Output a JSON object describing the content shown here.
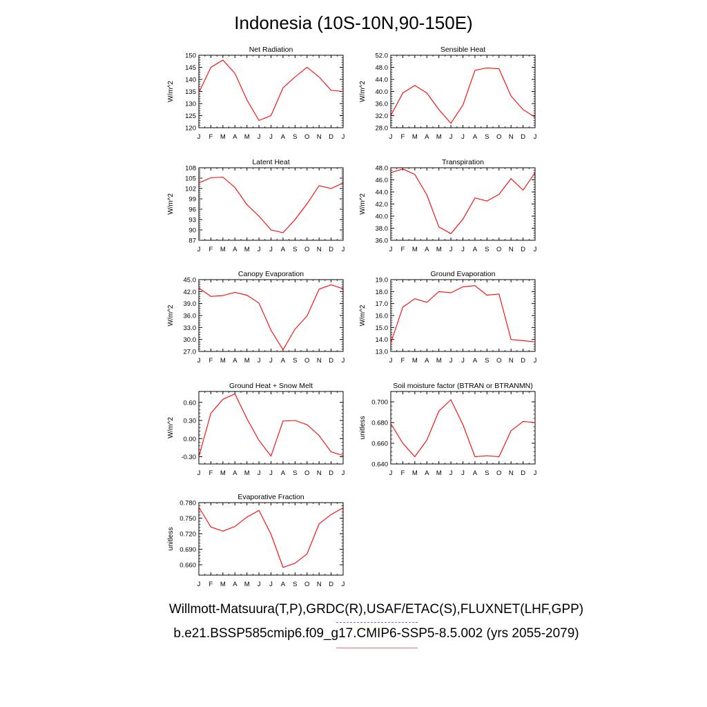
{
  "title": "Indonesia (10S-10N,90-150E)",
  "legend": {
    "obs_label": "Willmott-Matsuura(T,P),GRDC(R),USAF/ETAC(S),FLUXNET(LHF,GPP)",
    "model_label": "b.e21.BSSP585cmip6.f09_g17.CMIP6-SSP5-8.5.002 (yrs 2055-2079)",
    "obs_color": "#6b6bf0",
    "model_color": "#ff0000"
  },
  "chart_data": [
    {
      "type": "line",
      "title": "Net Radiation",
      "ylabel": "W/m^2",
      "x": [
        "J",
        "F",
        "M",
        "A",
        "M",
        "J",
        "J",
        "A",
        "S",
        "O",
        "N",
        "D",
        "J"
      ],
      "ylim": [
        120,
        150
      ],
      "yticks": [
        120,
        125,
        130,
        135,
        140,
        145,
        150
      ],
      "ytick_labels": [
        "120",
        "125",
        "130",
        "135",
        "140",
        "145",
        "150"
      ],
      "series": [
        {
          "values": [
            134.5,
            145.0,
            148.0,
            142.5,
            131.5,
            123.0,
            125.0,
            136.5,
            141.0,
            145.0,
            141.0,
            135.5,
            135.0
          ],
          "color": "#ff0000"
        }
      ]
    },
    {
      "type": "line",
      "title": "Sensible Heat",
      "ylabel": "W/m^2",
      "x": [
        "J",
        "F",
        "M",
        "A",
        "M",
        "J",
        "J",
        "A",
        "S",
        "O",
        "N",
        "D",
        "J"
      ],
      "ylim": [
        28,
        52
      ],
      "yticks": [
        28,
        32,
        36,
        40,
        44,
        48,
        52
      ],
      "ytick_labels": [
        "28.0",
        "32.0",
        "36.0",
        "40.0",
        "44.0",
        "48.0",
        "52.0"
      ],
      "series": [
        {
          "values": [
            32.0,
            39.5,
            42.0,
            39.5,
            34.0,
            29.5,
            35.5,
            47.0,
            47.8,
            47.5,
            38.5,
            34.0,
            31.5
          ],
          "color": "#ff0000"
        }
      ]
    },
    {
      "type": "line",
      "title": "Latent Heat",
      "ylabel": "W/m^2",
      "x": [
        "J",
        "F",
        "M",
        "A",
        "M",
        "J",
        "J",
        "A",
        "S",
        "O",
        "N",
        "D",
        "J"
      ],
      "ylim": [
        87,
        108
      ],
      "yticks": [
        87,
        90,
        93,
        96,
        99,
        102,
        105,
        108
      ],
      "ytick_labels": [
        "87",
        "90",
        "93",
        "96",
        "99",
        "102",
        "105",
        "108"
      ],
      "series": [
        {
          "values": [
            103.6,
            105.1,
            105.3,
            102.3,
            97.3,
            94.0,
            90.0,
            89.2,
            93.0,
            97.6,
            102.8,
            102.0,
            103.6
          ],
          "color": "#ff0000"
        }
      ]
    },
    {
      "type": "line",
      "title": "Transpiration",
      "ylabel": "W/m^2",
      "x": [
        "J",
        "F",
        "M",
        "A",
        "M",
        "J",
        "J",
        "A",
        "S",
        "O",
        "N",
        "D",
        "J"
      ],
      "ylim": [
        36,
        48
      ],
      "yticks": [
        36,
        38,
        40,
        42,
        44,
        46,
        48
      ],
      "ytick_labels": [
        "36.0",
        "38.0",
        "40.0",
        "42.0",
        "44.0",
        "46.0",
        "48.0"
      ],
      "series": [
        {
          "values": [
            47.2,
            47.8,
            46.9,
            43.5,
            38.2,
            37.1,
            39.5,
            43.0,
            42.5,
            43.6,
            46.2,
            44.3,
            47.2
          ],
          "color": "#ff0000"
        }
      ]
    },
    {
      "type": "line",
      "title": "Canopy Evaporation",
      "ylabel": "W/m^2",
      "x": [
        "J",
        "F",
        "M",
        "A",
        "M",
        "J",
        "J",
        "A",
        "S",
        "O",
        "N",
        "D",
        "J"
      ],
      "ylim": [
        27,
        45
      ],
      "yticks": [
        27,
        30,
        33,
        36,
        39,
        42,
        45
      ],
      "ytick_labels": [
        "27.0",
        "30.0",
        "33.0",
        "36.0",
        "39.0",
        "42.0",
        "45.0"
      ],
      "series": [
        {
          "values": [
            42.9,
            40.8,
            41.0,
            41.8,
            41.1,
            39.1,
            32.3,
            27.4,
            32.6,
            35.9,
            42.6,
            43.7,
            42.7
          ],
          "color": "#ff0000"
        }
      ]
    },
    {
      "type": "line",
      "title": "Ground Evaporation",
      "ylabel": "W/m^2",
      "x": [
        "J",
        "F",
        "M",
        "A",
        "M",
        "J",
        "J",
        "A",
        "S",
        "O",
        "N",
        "D",
        "J"
      ],
      "ylim": [
        13,
        19
      ],
      "yticks": [
        13,
        14,
        15,
        16,
        17,
        18,
        19
      ],
      "ytick_labels": [
        "13.0",
        "14.0",
        "15.0",
        "16.0",
        "17.0",
        "18.0",
        "19.0"
      ],
      "series": [
        {
          "values": [
            13.7,
            16.7,
            17.4,
            17.1,
            18.0,
            17.9,
            18.4,
            18.5,
            17.7,
            17.8,
            14.0,
            13.9,
            13.8
          ],
          "color": "#ff0000"
        }
      ]
    },
    {
      "type": "line",
      "title": "Ground Heat + Snow Melt",
      "ylabel": "W/m^2",
      "x": [
        "J",
        "F",
        "M",
        "A",
        "M",
        "J",
        "J",
        "A",
        "S",
        "O",
        "N",
        "D",
        "J"
      ],
      "ylim": [
        -0.42,
        0.78
      ],
      "yticks": [
        -0.3,
        0.0,
        0.3,
        0.6
      ],
      "ytick_labels": [
        "-0.30",
        "0.00",
        "0.30",
        "0.60"
      ],
      "series": [
        {
          "values": [
            -0.3,
            0.42,
            0.65,
            0.74,
            0.33,
            -0.03,
            -0.29,
            0.29,
            0.3,
            0.23,
            0.05,
            -0.22,
            -0.28
          ],
          "color": "#ff0000"
        }
      ]
    },
    {
      "type": "line",
      "title": "Soil moisture factor (BTRAN or BTRANMN)",
      "ylabel": "unitless",
      "x": [
        "J",
        "F",
        "M",
        "A",
        "M",
        "J",
        "J",
        "A",
        "S",
        "O",
        "N",
        "D",
        "J"
      ],
      "ylim": [
        0.64,
        0.71
      ],
      "yticks": [
        0.64,
        0.66,
        0.68,
        0.7
      ],
      "ytick_labels": [
        "0.640",
        "0.660",
        "0.680",
        "0.700"
      ],
      "series": [
        {
          "values": [
            0.679,
            0.66,
            0.647,
            0.663,
            0.691,
            0.702,
            0.678,
            0.647,
            0.648,
            0.647,
            0.672,
            0.681,
            0.68
          ],
          "color": "#ff0000"
        }
      ]
    },
    {
      "type": "line",
      "title": "Evaporative Fraction",
      "ylabel": "unitless",
      "x": [
        "J",
        "F",
        "M",
        "A",
        "M",
        "J",
        "J",
        "A",
        "S",
        "O",
        "N",
        "D",
        "J"
      ],
      "ylim": [
        0.64,
        0.78
      ],
      "yticks": [
        0.66,
        0.69,
        0.72,
        0.75,
        0.78
      ],
      "ytick_labels": [
        "0.660",
        "0.690",
        "0.720",
        "0.750",
        "0.780"
      ],
      "series": [
        {
          "values": [
            0.771,
            0.733,
            0.725,
            0.734,
            0.752,
            0.765,
            0.719,
            0.655,
            0.663,
            0.681,
            0.739,
            0.757,
            0.77
          ],
          "color": "#ff0000"
        }
      ]
    }
  ]
}
